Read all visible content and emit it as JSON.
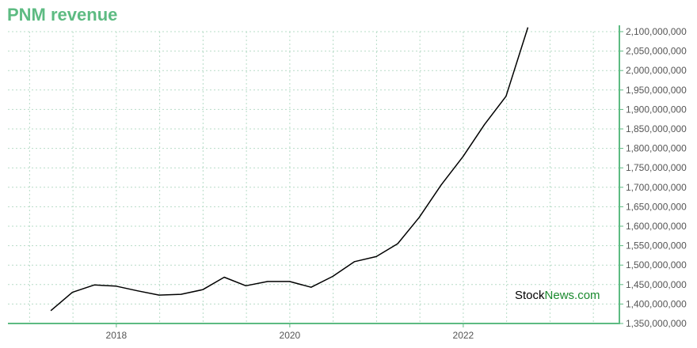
{
  "title": "PNM revenue",
  "watermark": {
    "part1": "Stock",
    "part2": "News",
    "part3": ".com"
  },
  "colors": {
    "title": "#5dbb82",
    "axis": "#5dbb82",
    "grid": "#b7dcc7",
    "line": "#000000"
  },
  "chart_data": {
    "type": "line",
    "title": "PNM revenue",
    "xlabel": "",
    "ylabel": "",
    "xlim": [
      2016.75,
      2023.8
    ],
    "ylim": [
      1350000000,
      2100000000
    ],
    "x_ticks": [
      {
        "value": 2018,
        "label": "2018"
      },
      {
        "value": 2020,
        "label": "2020"
      },
      {
        "value": 2022,
        "label": "2022"
      }
    ],
    "y_ticks": [
      {
        "value": 1350000000,
        "label": "1,350,000,000"
      },
      {
        "value": 1400000000,
        "label": "1,400,000,000"
      },
      {
        "value": 1450000000,
        "label": "1,450,000,000"
      },
      {
        "value": 1500000000,
        "label": "1,500,000,000"
      },
      {
        "value": 1550000000,
        "label": "1,550,000,000"
      },
      {
        "value": 1600000000,
        "label": "1,600,000,000"
      },
      {
        "value": 1650000000,
        "label": "1,650,000,000"
      },
      {
        "value": 1700000000,
        "label": "1,700,000,000"
      },
      {
        "value": 1750000000,
        "label": "1,750,000,000"
      },
      {
        "value": 1800000000,
        "label": "1,800,000,000"
      },
      {
        "value": 1850000000,
        "label": "1,850,000,000"
      },
      {
        "value": 1900000000,
        "label": "1,900,000,000"
      },
      {
        "value": 1950000000,
        "label": "1,950,000,000"
      },
      {
        "value": 2000000000,
        "label": "2,000,000,000"
      },
      {
        "value": 2050000000,
        "label": "2,050,000,000"
      },
      {
        "value": 2100000000,
        "label": "2,100,000,000"
      }
    ],
    "grid": true,
    "series": [
      {
        "x": [
          "2017-03-31",
          "2017-06-30",
          "2017-09-30",
          "2017-12-31",
          "2018-03-31",
          "2018-06-30",
          "2018-09-30",
          "2018-12-31",
          "2019-03-31",
          "2019-06-30",
          "2019-09-30",
          "2019-12-31",
          "2020-03-31",
          "2020-06-30",
          "2020-09-30",
          "2020-12-31",
          "2021-03-31",
          "2021-06-30",
          "2021-09-30",
          "2021-12-31",
          "2022-03-31",
          "2022-06-30",
          "2022-09-30"
        ],
        "values": [
          1383000000,
          1430000000,
          1449000000,
          1446000000,
          1434000000,
          1423000000,
          1425000000,
          1437000000,
          1469000000,
          1447000000,
          1458000000,
          1458000000,
          1443000000,
          1471000000,
          1509000000,
          1522000000,
          1555000000,
          1623000000,
          1706000000,
          1779000000,
          1861000000,
          1934000000,
          2111000000
        ]
      }
    ]
  }
}
